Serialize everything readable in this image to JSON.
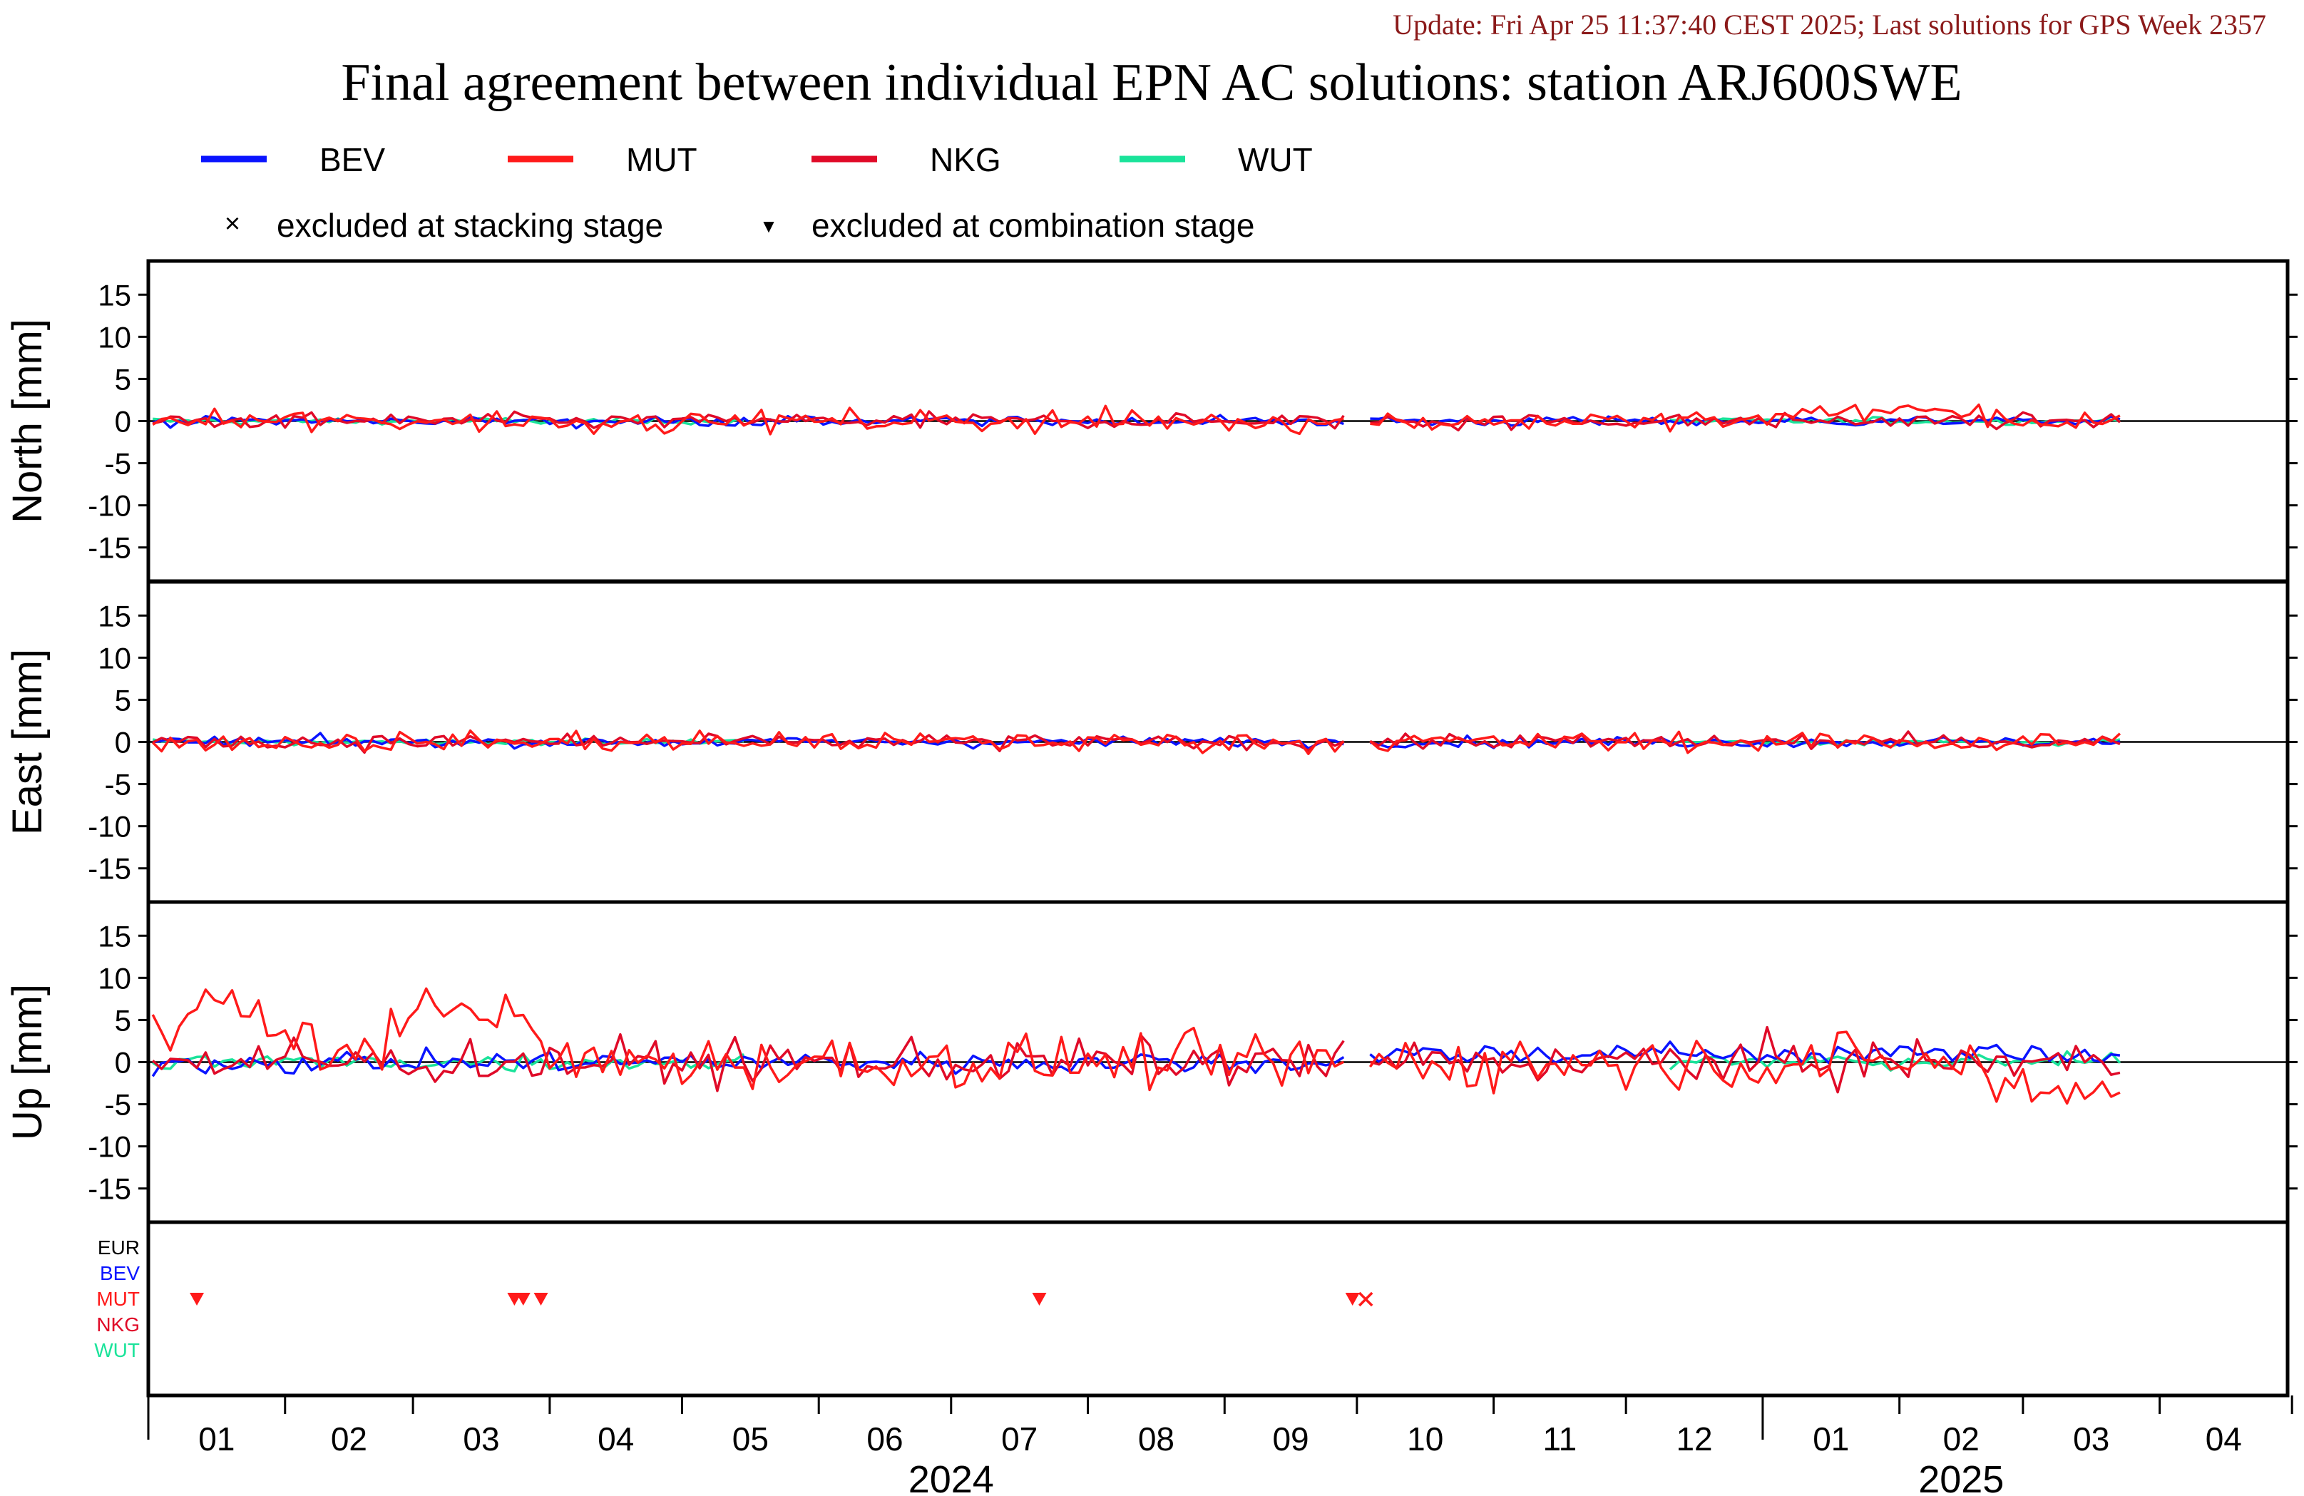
{
  "header": {
    "update_line": "Update: Fri Apr 25 11:37:40 CEST 2025; Last solutions for GPS Week 2357",
    "update_color": "#8b1a1a",
    "title": "Final agreement between individual EPN AC solutions: station ARJ600SWE"
  },
  "legend": {
    "series": [
      {
        "name": "BEV",
        "color": "#0a14ff"
      },
      {
        "name": "MUT",
        "color": "#ff1a1a"
      },
      {
        "name": "NKG",
        "color": "#e00a28"
      },
      {
        "name": "WUT",
        "color": "#1ae39a"
      }
    ],
    "symbols": [
      {
        "glyph": "×",
        "label": "excluded at stacking stage"
      },
      {
        "glyph": "▼",
        "label": "excluded at combination stage"
      }
    ]
  },
  "chart_data": {
    "type": "line",
    "x_axis": {
      "start": "2024-01-01",
      "end": "2025-04-30",
      "month_ticks": [
        "01",
        "02",
        "03",
        "04",
        "05",
        "06",
        "07",
        "08",
        "09",
        "10",
        "11",
        "12",
        "01",
        "02",
        "03",
        "04"
      ],
      "year_labels": [
        {
          "year": "2024",
          "month_index": 6
        },
        {
          "year": "2025",
          "month_index": 13.5
        }
      ],
      "data_end": "2025-03-24",
      "gap": [
        "2024-09-29",
        "2024-10-03"
      ]
    },
    "panels": [
      {
        "key": "north",
        "ylabel": "North [mm]",
        "ylim": [
          -19,
          19
        ],
        "ticks": [
          15,
          10,
          5,
          0,
          -5,
          -10,
          -15
        ],
        "noise": {
          "BEV": 0.6,
          "MUT": 1.3,
          "NKG": 0.9,
          "WUT": 0.4
        }
      },
      {
        "key": "east",
        "ylabel": "East [mm]",
        "ylim": [
          -19,
          19
        ],
        "ticks": [
          15,
          10,
          5,
          0,
          -5,
          -10,
          -15
        ],
        "noise": {
          "BEV": 0.6,
          "MUT": 1.2,
          "NKG": 0.9,
          "WUT": 0.4
        }
      },
      {
        "key": "up",
        "ylabel": "Up [mm]",
        "ylim": [
          -19,
          19
        ],
        "ticks": [
          15,
          10,
          5,
          0,
          -5,
          -10,
          -15
        ],
        "noise": {
          "BEV": 1.3,
          "MUT": 3.2,
          "NKG": 2.6,
          "WUT": 1.0
        }
      }
    ],
    "exclusion_panel": {
      "rows": [
        {
          "name": "EUR",
          "color": "#000000"
        },
        {
          "name": "BEV",
          "color": "#0a14ff"
        },
        {
          "name": "MUT",
          "color": "#ff1a1a"
        },
        {
          "name": "NKG",
          "color": "#e00a28"
        },
        {
          "name": "WUT",
          "color": "#1ae39a"
        }
      ],
      "events": [
        {
          "date": "2024-01-12",
          "row": "MUT",
          "type": "combination"
        },
        {
          "date": "2024-03-24",
          "row": "MUT",
          "type": "combination"
        },
        {
          "date": "2024-03-26",
          "row": "MUT",
          "type": "combination"
        },
        {
          "date": "2024-03-30",
          "row": "MUT",
          "type": "combination"
        },
        {
          "date": "2024-07-21",
          "row": "MUT",
          "type": "combination"
        },
        {
          "date": "2024-09-30",
          "row": "MUT",
          "type": "combination"
        },
        {
          "date": "2024-10-03",
          "row": "MUT",
          "type": "stacking"
        }
      ]
    },
    "grid": false,
    "legend_position": "top"
  }
}
